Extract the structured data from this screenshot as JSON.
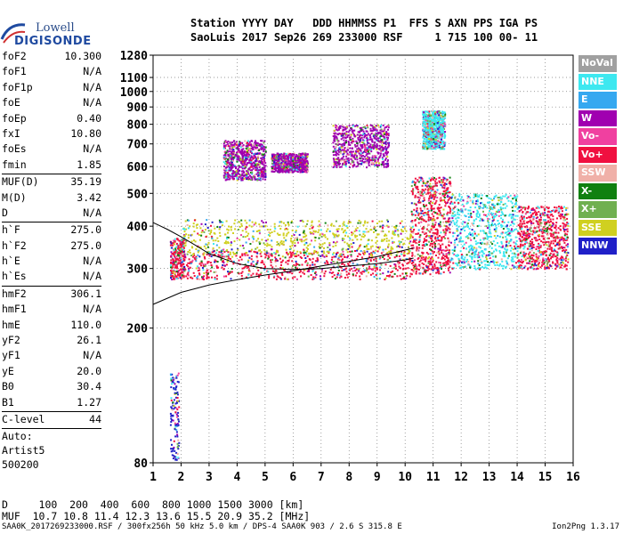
{
  "logo": {
    "line1": "Lowell",
    "line2": "DIGISONDE"
  },
  "header": {
    "labels": "Station YYYY DAY   DDD HHMMSS P1  FFS S AXN PPS IGA PS",
    "values": "SaoLuis 2017 Sep26 269 233000 RSF     1 715 100 00- 11"
  },
  "params": {
    "group1": [
      {
        "name": "foF2",
        "value": "10.300"
      },
      {
        "name": "foF1",
        "value": "N/A"
      },
      {
        "name": "foF1p",
        "value": "N/A"
      },
      {
        "name": "foE",
        "value": "N/A"
      },
      {
        "name": "foEp",
        "value": "0.40"
      },
      {
        "name": "fxI",
        "value": "10.80"
      },
      {
        "name": "foEs",
        "value": "N/A"
      },
      {
        "name": "fmin",
        "value": "1.85"
      }
    ],
    "group2": [
      {
        "name": "MUF(D)",
        "value": "35.19"
      },
      {
        "name": "M(D)",
        "value": "3.42"
      },
      {
        "name": "D",
        "value": "N/A"
      }
    ],
    "group3": [
      {
        "name": "h`F",
        "value": "275.0"
      },
      {
        "name": "h`F2",
        "value": "275.0"
      },
      {
        "name": "h`E",
        "value": "N/A"
      },
      {
        "name": "h`Es",
        "value": "N/A"
      }
    ],
    "group4": [
      {
        "name": "hmF2",
        "value": "306.1"
      },
      {
        "name": "hmF1",
        "value": "N/A"
      },
      {
        "name": "hmE",
        "value": "110.0"
      },
      {
        "name": "yF2",
        "value": "26.1"
      },
      {
        "name": "yF1",
        "value": "N/A"
      },
      {
        "name": "yE",
        "value": "20.0"
      },
      {
        "name": "B0",
        "value": "30.4"
      },
      {
        "name": "B1",
        "value": "1.27"
      }
    ],
    "clevel": {
      "name": "C-level",
      "value": "44"
    },
    "auto": [
      "Auto:",
      "Artist5",
      "500200"
    ]
  },
  "legend": [
    {
      "label": "NoVal",
      "color": "#a0a0a0"
    },
    {
      "label": "NNE",
      "color": "#3de8f0"
    },
    {
      "label": "E",
      "color": "#35a8f0"
    },
    {
      "label": "W",
      "color": "#a000b0"
    },
    {
      "label": "Vo-",
      "color": "#f040a0"
    },
    {
      "label": "Vo+",
      "color": "#f01040"
    },
    {
      "label": "SSW",
      "color": "#f0b0a8"
    },
    {
      "label": "X-",
      "color": "#108010"
    },
    {
      "label": "X+",
      "color": "#70b050"
    },
    {
      "label": "SSE",
      "color": "#d0d020"
    },
    {
      "label": "NNW",
      "color": "#2020c8"
    }
  ],
  "footer": {
    "line1": "D     100  200  400  600  800 1000 1500 3000 [km]",
    "line2": "MUF  10.7 10.8 11.4 12.3 13.6 15.5 20.9 35.2 [MHz]",
    "line3": "SAA0K_2017269233000.RSF / 300fx256h 50 kHz 5.0 km / DPS-4 SAA0K 903 / 2.6 S 315.8 E",
    "version": "Ion2Png 1.3.17"
  },
  "chart_data": {
    "type": "scatter",
    "xlim": [
      1,
      16
    ],
    "ylim": [
      80,
      1280
    ],
    "x_ticks": [
      1,
      2,
      3,
      4,
      5,
      6,
      7,
      8,
      9,
      10,
      11,
      12,
      13,
      14,
      15,
      16
    ],
    "y_ticks": [
      80,
      200,
      300,
      400,
      500,
      600,
      700,
      800,
      900,
      1000,
      1100,
      1280
    ],
    "y_scale": "log",
    "grid": true,
    "echo_clusters": [
      {
        "x_range": [
          1.6,
          2.1
        ],
        "y_range": [
          280,
          370
        ],
        "series": "Vo+"
      },
      {
        "x_range": [
          1.6,
          1.9
        ],
        "y_range": [
          82,
          150
        ],
        "series": "NNW"
      },
      {
        "x_range": [
          2.0,
          10.2
        ],
        "y_range": [
          280,
          340
        ],
        "series": "Vo+"
      },
      {
        "x_range": [
          2.0,
          10.2
        ],
        "y_range": [
          330,
          420
        ],
        "series": "SSE"
      },
      {
        "x_range": [
          3.5,
          5.0
        ],
        "y_range": [
          550,
          720
        ],
        "series": "W"
      },
      {
        "x_range": [
          5.2,
          6.5
        ],
        "y_range": [
          580,
          660
        ],
        "series": "W"
      },
      {
        "x_range": [
          7.4,
          9.4
        ],
        "y_range": [
          600,
          800
        ],
        "series": "W"
      },
      {
        "x_range": [
          10.2,
          11.6
        ],
        "y_range": [
          290,
          560
        ],
        "series": "Vo+"
      },
      {
        "x_range": [
          10.6,
          11.4
        ],
        "y_range": [
          680,
          880
        ],
        "series": "NNE"
      },
      {
        "x_range": [
          11.6,
          14.0
        ],
        "y_range": [
          300,
          500
        ],
        "series": "NNE"
      },
      {
        "x_range": [
          14.0,
          15.8
        ],
        "y_range": [
          300,
          460
        ],
        "series": "Vo+"
      }
    ],
    "profile_curves": [
      {
        "name": "virtual-height-trace",
        "points": [
          [
            1,
            235
          ],
          [
            2,
            255
          ],
          [
            3,
            268
          ],
          [
            4,
            278
          ],
          [
            5,
            287
          ],
          [
            6,
            295
          ],
          [
            7,
            305
          ],
          [
            8,
            315
          ],
          [
            9,
            325
          ],
          [
            10,
            340
          ],
          [
            10.3,
            345
          ]
        ]
      },
      {
        "name": "profile-upper",
        "points": [
          [
            1,
            410
          ],
          [
            1.5,
            392
          ],
          [
            2,
            372
          ],
          [
            2.5,
            352
          ],
          [
            3,
            332
          ],
          [
            4,
            310
          ],
          [
            5,
            300
          ],
          [
            6,
            298
          ],
          [
            7,
            300
          ],
          [
            8,
            305
          ],
          [
            9,
            310
          ],
          [
            10,
            318
          ],
          [
            10.3,
            322
          ]
        ]
      }
    ]
  }
}
